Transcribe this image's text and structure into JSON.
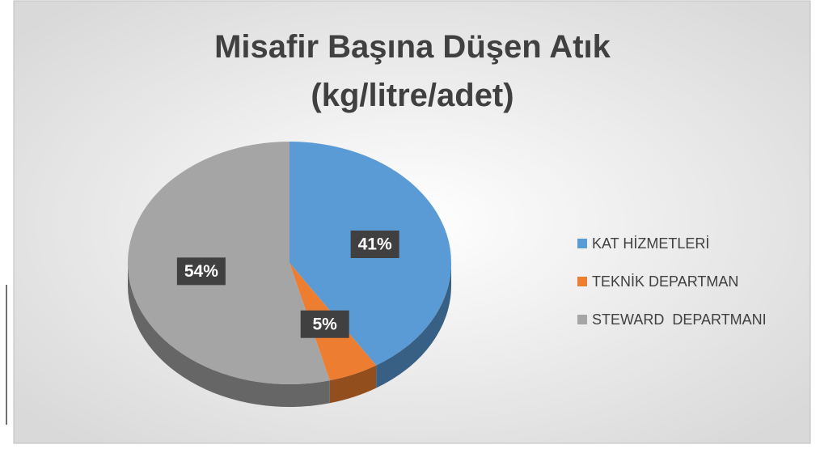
{
  "chart_data": {
    "type": "pie",
    "title": "Misafir Başına Düşen Atık (kg/litre/adet)",
    "categories": [
      "KAT HİZMETLERİ",
      "TEKNİK DEPARTMAN",
      "STEWARD  DEPARTMANI"
    ],
    "values": [
      41,
      5,
      54
    ],
    "value_labels": [
      "41%",
      "5%",
      "54%"
    ],
    "colors": [
      "#5b9bd5",
      "#ed7d31",
      "#a5a5a5"
    ],
    "legend": "right"
  }
}
